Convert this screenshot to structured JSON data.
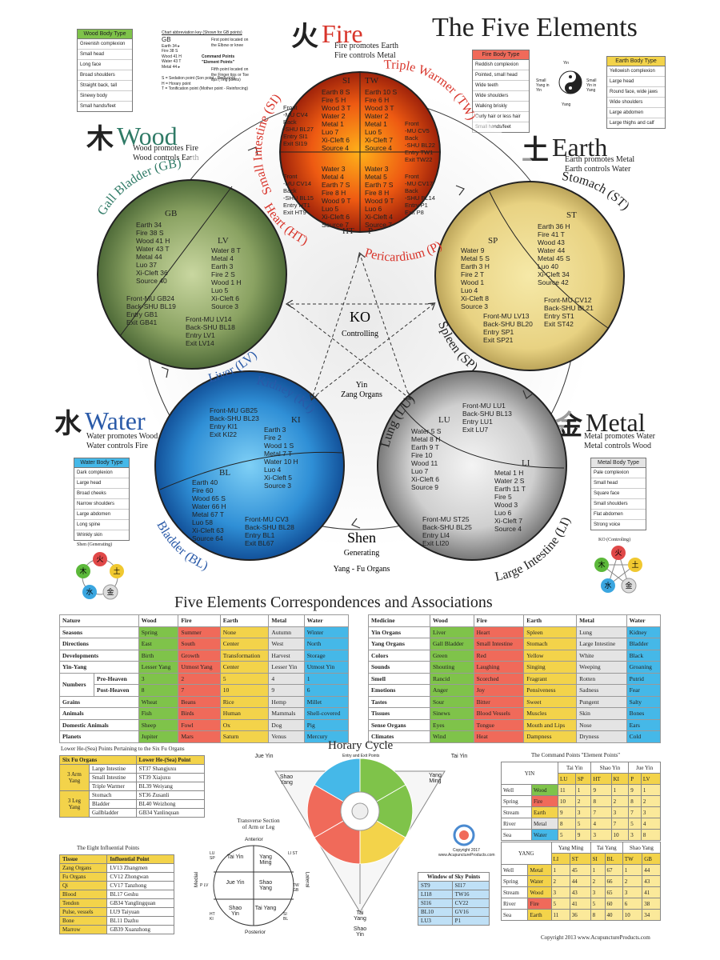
{
  "title": "The Five Elements",
  "elements": {
    "fire": {
      "glyph": "火",
      "name": "Fire",
      "sub1": "Fire promotes Earth",
      "sub2": "Fire controls Metal",
      "color": "#d8342a"
    },
    "wood": {
      "glyph": "木",
      "name": "Wood",
      "sub1": "Wood promotes Fire",
      "sub2": "Wood controls Earth",
      "color": "#2f7a66"
    },
    "earth": {
      "glyph": "土",
      "name": "Earth",
      "sub1": "Earth promotes Metal",
      "sub2": "Earth controls Water",
      "color": "#222222"
    },
    "water": {
      "glyph": "水",
      "name": "Water",
      "sub1": "Water promotes Wood",
      "sub2": "Water controls Fire",
      "color": "#2a5aa8"
    },
    "metal": {
      "glyph": "金",
      "name": "Metal",
      "sub1": "Metal promotes Water",
      "sub2": "Metal controls Wood",
      "color": "#222222"
    }
  },
  "meridians": {
    "si": "Small Intestine (SI)",
    "tw": "Triple Warmer (TW)",
    "ht": "Heart (HT)",
    "p": "Pericardium (P)",
    "gb": "Gall Bladder (GB)",
    "lv": "Liver (LV)",
    "st": "Stomach (ST)",
    "sp": "Spleen (SP)",
    "ki": "Kidney (KI)",
    "bl": "Bladder (BL)",
    "lu": "Lung (LU)",
    "li": "Large Intestine (LI)"
  },
  "center": {
    "ko": "KO",
    "controlling": "Controlling",
    "yin": "Yin",
    "zang": "Zang Organs",
    "shen": "Shen",
    "generating": "Generating",
    "yang_fu": "Yang - Fu Organs"
  },
  "body_types": {
    "wood": {
      "title": "Wood Body Type",
      "rows": [
        "Greenish complexion",
        "Small head",
        "Long face",
        "Broad shoulders",
        "Straight back, tall",
        "Sinewy body",
        "Small hands/feet"
      ]
    },
    "fire": {
      "title": "Fire Body Type",
      "rows": [
        "Reddish complexion",
        "Pointed, small head",
        "Wide teeth",
        "Wide shoulders",
        "Walking briskly",
        "Curly hair or less hair",
        "Small hands/feet"
      ]
    },
    "earth": {
      "title": "Earth Body Type",
      "rows": [
        "Yellowish complexion",
        "Large head",
        "Round face, wide jaws",
        "Wide shoulders",
        "Large abdomen",
        "Large thighs and calf"
      ]
    },
    "water": {
      "title": "Water Body Type",
      "rows": [
        "Dark complexion",
        "Large head",
        "Broad cheeks",
        "Narrow shoulders",
        "Large abdomen",
        "Long spine",
        "Wrinkly skin"
      ]
    },
    "metal": {
      "title": "Metal Body Type",
      "rows": [
        "Pale complexion",
        "Small head",
        "Square face",
        "Small shoulders",
        "Flat abdomen",
        "Strong voice"
      ]
    }
  },
  "abbrev_key": {
    "title": "Chart abbreviation key (Shown for GB points)",
    "gb": "GB",
    "note1": "First point located on the Elbow or knee",
    "lines": [
      "Earth 34 ▸",
      "Fire 38 S",
      "Wood 41 H",
      "Water 43 T",
      "Metal 44 ▸"
    ],
    "cmd1": "Command Points",
    "cmd2": "\"Element Points\"",
    "note2": "Fifth point located on the Finger tips or Toe tips (Ting points)",
    "legend": [
      "S = Sedation point (Son point - Reducing)",
      "H = Horary point",
      "T = Tonification point (Mother point - Reinforcing)"
    ]
  },
  "yinyang": {
    "yin": "Yin",
    "yang": "Yang",
    "left": "Small Yang in Yin",
    "right": "Small Yin in Yang"
  },
  "fire_circle": {
    "si_head": "SI",
    "tw_head": "TW",
    "ht_head": "HT",
    "p_head": "P",
    "si_pts": "Earth 8 S\nFire 5 H\nWood 3 T\nWater 2\nMetal 1\nLuo 7\nXi-Cleft 6\nSource 4",
    "tw_pts": "Earth 10 S\nFire 6 H\nWood 3 T\nWater 2\nMetal 1\nLuo 5\nXi-Cleft 7\nSource 4",
    "si_mu": "Front\n-MU CV4\nBack\n-SHU BL27\nEntry SI1\nExit SI19",
    "tw_mu": "Front\n-MU CV5\nBack\n-SHU BL22\nEntry TW1\nExit TW22",
    "ht_mu": "Front\n-MU CV14\nBack\n-SHU BL15\nEntry HT1\nExit HT9",
    "p_mu": "Front\n-MU CV17\nBack\n-SHU BL14\nEntry P1\nExit P8",
    "ht_pts": "Water 3\nMetal 4\nEarth 7 S\nFire 8 H\nWood 9 T\nLuo 5\nXi-Cleft 6\nSource 7",
    "p_pts": "Water 3\nMetal 5\nEarth 7 S\nFire 8 H\nWood 9 T\nLuo 6\nXi-Cleft 4\nSource 7"
  },
  "wood_circle": {
    "gb_head": "GB",
    "lv_head": "LV",
    "gb_pts": "Earth 34\nFire 38 S\nWood 41 H\nWater 43 T\nMetal 44\nLuo 37\nXi-Cleft 36\nSource 40",
    "lv_pts": "Water 8 T\nMetal 4\nEarth 3\nFire 2 S\nWood 1 H\nLuo 5\nXi-Cleft 6\nSource 3",
    "gb_mu": "Front-MU GB24\nBack-SHU BL19\nEntry GB1\nExit GB41",
    "lv_mu": "Front-MU LV14\nBack-SHU BL18\nEntry LV1\nExit LV14"
  },
  "earth_circle": {
    "st_head": "ST",
    "sp_head": "SP",
    "st_pts": "Earth 36 H\nFire 41 T\nWood 43\nWater 44\nMetal 45 S\nLuo 40\nXi-Cleft 34\nSource 42",
    "sp_pts": "Water 9\nMetal 5 S\nEarth 3 H\nFire 2 T\nWood 1\nLuo 4\nXi-Cleft 8\nSource 3",
    "st_mu": "Front-MU CV12\nBack-SHU BL21\nEntry ST1\nExit ST42",
    "sp_mu": "Front-MU LV13\nBack-SHU BL20\nEntry SP1\nExit SP21"
  },
  "water_circle": {
    "ki_head": "KI",
    "bl_head": "BL",
    "ki_pts": "Earth 3\nFire 2\nWood 1 S\nMetal 7 T\nWater 10 H\nLuo 4\nXi-Cleft 5\nSource 3",
    "bl_pts": "Earth 40\nFire 60\nWood 65 S\nWater 66 H\nMetal 67 T\nLuo 58\nXi-Cleft 63\nSource 64",
    "ki_mu": "Front-MU GB25\nBack-SHU BL23\nEntry KI1\nExit KI22",
    "bl_mu": "Front-MU CV3\nBack-SHU BL28\nEntry BL1\nExit BL67"
  },
  "metal_circle": {
    "lu_head": "LU",
    "li_head": "LI",
    "lu_pts": "Water 5 S\nMetal 8 H\nEarth 9 T\nFire 10\nWood 11\nLuo 7\nXi-Cleft 6\nSource 9",
    "li_pts": "Metal 1 H\nWater 2 S\nEarth 11 T\nFire 5\nWood 3\nLuo 6\nXi-Cleft 7\nSource 4",
    "lu_mu": "Front-MU LU1\nBack-SHU BL13\nEntry LU1\nExit LU7",
    "li_mu": "Front-MU ST25\nBack-SHU BL25\nEntry LI4\nExit LI20"
  },
  "mini": {
    "shen": "Shen (Generating)",
    "ko": "KO (Controling)",
    "glyphs": [
      "火",
      "土",
      "金",
      "水",
      "木"
    ]
  },
  "corr_title": "Five Elements Correspondences and Associations",
  "corr_left": {
    "header": [
      "Nature",
      "Wood",
      "Fire",
      "Earth",
      "Metal",
      "Water"
    ],
    "rows": [
      [
        "Seasons",
        "Spring",
        "Summer",
        "None",
        "Autumn",
        "Winter"
      ],
      [
        "Directions",
        "East",
        "South",
        "Center",
        "West",
        "North"
      ],
      [
        "Developments",
        "Birth",
        "Growth",
        "Transformation",
        "Harvest",
        "Storage"
      ],
      [
        "Yin-Yang",
        "Lesser Yang",
        "Utmost Yang",
        "Center",
        "Lesser Yin",
        "Utmost Yin"
      ],
      [
        "Pre-Heaven",
        "3",
        "2",
        "5",
        "4",
        "1"
      ],
      [
        "Post-Heaven",
        "8",
        "7",
        "10",
        "9",
        "6"
      ],
      [
        "Grains",
        "Wheat",
        "Beans",
        "Rice",
        "Hemp",
        "Millet"
      ],
      [
        "Animals",
        "Fish",
        "Birds",
        "Human",
        "Mammals",
        "Shell-covered"
      ],
      [
        "Domestic Animals",
        "Sheep",
        "Fowl",
        "Ox",
        "Dog",
        "Pig"
      ],
      [
        "Planets",
        "Jupiter",
        "Mars",
        "Saturn",
        "Venus",
        "Mercury"
      ]
    ],
    "numbers": "Numbers"
  },
  "corr_right": {
    "header": [
      "Medicine",
      "Wood",
      "Fire",
      "Earth",
      "Metal",
      "Water"
    ],
    "rows": [
      [
        "Yin Organs",
        "Liver",
        "Heart",
        "Spleen",
        "Lung",
        "Kidney"
      ],
      [
        "Yang Organs",
        "Gall Bladder",
        "Small Intestine",
        "Stomach",
        "Large Intestine",
        "Bladder"
      ],
      [
        "Colors",
        "Green",
        "Red",
        "Yellow",
        "White",
        "Black"
      ],
      [
        "Sounds",
        "Shouting",
        "Laughing",
        "Singing",
        "Weeping",
        "Groaning"
      ],
      [
        "Smell",
        "Rancid",
        "Scorched",
        "Fragrant",
        "Rotten",
        "Putrid"
      ],
      [
        "Emotions",
        "Anger",
        "Joy",
        "Pensiveness",
        "Sadness",
        "Fear"
      ],
      [
        "Tastes",
        "Sour",
        "Bitter",
        "Sweet",
        "Pungent",
        "Salty"
      ],
      [
        "Tissues",
        "Sinews",
        "Blood Vessels",
        "Muscles",
        "Skin",
        "Bones"
      ],
      [
        "Sense Organs",
        "Eyes",
        "Tongue",
        "Mouth and Lips",
        "Nose",
        "Ears"
      ],
      [
        "Climates",
        "Wind",
        "Heat",
        "Dampness",
        "Dryness",
        "Cold"
      ]
    ]
  },
  "lower_he": {
    "title": "Lower He-(Sea) Points Pertaining to the Six Fu Organs",
    "h1": "Six Fu Organs",
    "h2": "Lower He-(Sea) Point",
    "g1": "3 Arm Yang",
    "g2": "3 Leg Yang",
    "rows": [
      [
        "Large Intestine",
        "ST37 Shangjuxu"
      ],
      [
        "Small Intestine",
        "ST39 Xiajuxu"
      ],
      [
        "Triple Warmer",
        "BL39 Weiyang"
      ],
      [
        "Stomach",
        "ST36 Zusanli"
      ],
      [
        "Bladder",
        "BL40 Weizhong"
      ],
      [
        "Gallbladder",
        "GB34 Yanlinquan"
      ]
    ]
  },
  "influential": {
    "title": "The Eight Influential Points",
    "h1": "Tissue",
    "h2": "Influential Point",
    "rows": [
      [
        "Zang Organs",
        "LV13 Zhangmen"
      ],
      [
        "Fu Organs",
        "CV12 Zhongwan"
      ],
      [
        "Qi",
        "CV17 Tanzhong"
      ],
      [
        "Blood",
        "BL17 Geshu"
      ],
      [
        "Tendon",
        "GB34 Yanglingquan"
      ],
      [
        "Pulse, vessels",
        "LU9 Taiyuan"
      ],
      [
        "Bone",
        "BL11 Dazhu"
      ],
      [
        "Marrow",
        "GB39 Xuanzhong"
      ]
    ]
  },
  "horary": {
    "title": "Horary Cycle",
    "sub": "Entry and Exit Points",
    "jue_l": "Jue Yin",
    "tai_r": "Tai Yin",
    "shao_l": "Shao Yang",
    "yang_r": "Yang Ming",
    "tai_yang": "Tai Yang",
    "shao_yin": "Shao Yin"
  },
  "transverse": {
    "t1": "Transverse Section",
    "t2": "of Arm or Leg",
    "anterior": "Anterior",
    "posterior": "Posterior",
    "medial": "Medial",
    "lateral": "Lateral",
    "cells": [
      "Tai Yin",
      "Yang Ming",
      "Jue Yin",
      "Shao Yang",
      "Shao Yin",
      "Tai Yang"
    ],
    "side_l": [
      "LU SP",
      "P LV",
      "HT KI"
    ],
    "side_r": [
      "LI ST",
      "TW GB",
      "SI BL"
    ]
  },
  "copyright_mid": "Copyright 2017 www.AcupunctureProducts.com",
  "window_sky": {
    "title": "Window of Sky Points",
    "rows": [
      [
        "ST9",
        "SI17"
      ],
      [
        "LI18",
        "TW16"
      ],
      [
        "SI16",
        "CV22"
      ],
      [
        "BL10",
        "GV16"
      ],
      [
        "LU3",
        "P1"
      ]
    ]
  },
  "command": {
    "title": "The Command Points \"Element Points\"",
    "yin": "YIN",
    "yang": "YANG",
    "yin_groups": [
      "Tai Yin",
      "Shao Yin",
      "Jue Yin"
    ],
    "yin_cols": [
      "LU",
      "SP",
      "HT",
      "KI",
      "P",
      "LV"
    ],
    "yang_groups": [
      "Yang Ming",
      "Tai Yang",
      "Shao Yang"
    ],
    "yang_cols": [
      "LI",
      "ST",
      "SI",
      "BL",
      "TW",
      "GB"
    ],
    "yin_rows": [
      [
        "Well",
        "Wood",
        "11",
        "1",
        "9",
        "1",
        "9",
        "1"
      ],
      [
        "Spring",
        "Fire",
        "10",
        "2",
        "8",
        "2",
        "8",
        "2"
      ],
      [
        "Stream",
        "Earth",
        "9",
        "3",
        "7",
        "3",
        "7",
        "3"
      ],
      [
        "River",
        "Metal",
        "8",
        "5",
        "4",
        "7",
        "5",
        "4"
      ],
      [
        "Sea",
        "Water",
        "5",
        "9",
        "3",
        "10",
        "3",
        "8"
      ]
    ],
    "yang_rows": [
      [
        "Well",
        "Metal",
        "1",
        "45",
        "1",
        "67",
        "1",
        "44"
      ],
      [
        "Spring",
        "Water",
        "2",
        "44",
        "2",
        "66",
        "2",
        "43"
      ],
      [
        "Stream",
        "Wood",
        "3",
        "43",
        "3",
        "65",
        "3",
        "41"
      ],
      [
        "River",
        "Fire",
        "5",
        "41",
        "5",
        "60",
        "6",
        "38"
      ],
      [
        "Sea",
        "Earth",
        "11",
        "36",
        "8",
        "40",
        "10",
        "34"
      ]
    ]
  },
  "copyright": "Copyright 2013 www.AcupunctureProducts.com",
  "colors": {
    "wood": "#7fc34a",
    "fire": "#f06a5a",
    "earth": "#f3d34a",
    "metal": "#e4e4e4",
    "water": "#45b8e8"
  }
}
